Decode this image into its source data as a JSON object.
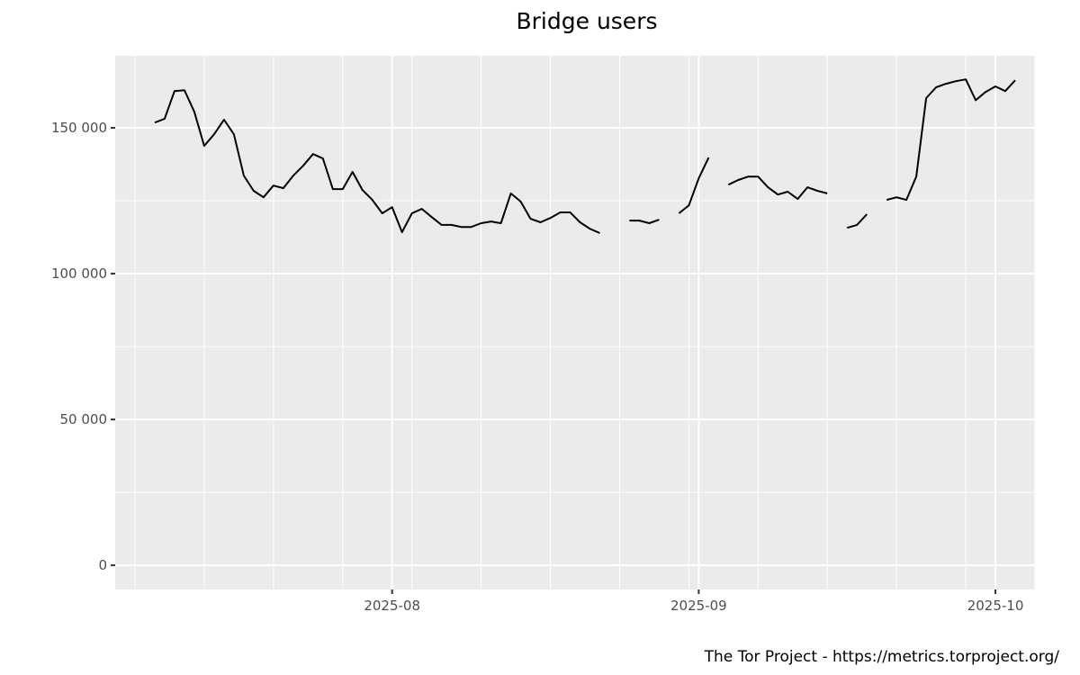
{
  "chart_data": {
    "type": "line",
    "title": "Bridge users",
    "caption": "The Tor Project - https://metrics.torproject.org/",
    "xlabel": "",
    "ylabel": "",
    "xlim": [
      "2025-07-04",
      "2025-10-05"
    ],
    "ylim": [
      -8300,
      174700
    ],
    "x_ticks": [
      {
        "date": "2025-08-01",
        "label": "2025-08"
      },
      {
        "date": "2025-09-01",
        "label": "2025-09"
      },
      {
        "date": "2025-10-01",
        "label": "2025-10"
      }
    ],
    "y_ticks": [
      {
        "value": 0,
        "label": "0"
      },
      {
        "value": 50000,
        "label": "50 000"
      },
      {
        "value": 100000,
        "label": "100 000"
      },
      {
        "value": 150000,
        "label": "150 000"
      }
    ],
    "grid": true,
    "colors": {
      "panel": "#ebebeb",
      "grid": "#ffffff",
      "line": "#000000"
    },
    "series": [
      {
        "start_date": "2025-07-08",
        "values": [
          151800,
          153100,
          162600,
          162900,
          155500,
          143800,
          147800,
          152800,
          147800,
          133600,
          128400,
          126200,
          130200,
          129300,
          133600,
          137000,
          141000,
          139500,
          129000,
          129000,
          134900,
          128700,
          125300,
          120700,
          122800,
          114200,
          120700,
          122200,
          119400,
          116700,
          116700,
          116000,
          116000,
          117300,
          117900,
          117300,
          127500,
          124700,
          118800,
          117600,
          119100,
          121000,
          121000,
          117600,
          115400,
          113900,
          null,
          null,
          118200,
          118200,
          117300,
          118500,
          null,
          120700,
          123400,
          132700,
          139800,
          null,
          130500,
          132100,
          133300,
          133300,
          129600,
          127100,
          128100,
          125600,
          129600,
          128400,
          127500,
          null,
          115700,
          116700,
          120400,
          null,
          125300,
          126200,
          125300,
          133300,
          160200,
          163900,
          165100,
          166000,
          166600,
          159500,
          162300,
          164200,
          162600,
          166300
        ]
      }
    ]
  }
}
